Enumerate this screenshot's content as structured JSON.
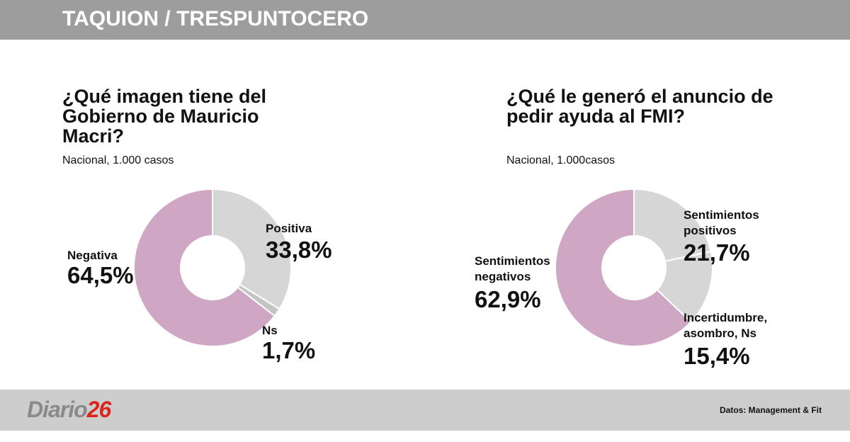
{
  "header": {
    "title": "TAQUION / TRESPUNTOCERO"
  },
  "footer": {
    "logo": [
      "Diario",
      "26"
    ],
    "source": "Datos: Management & Fit"
  },
  "chart_data": [
    {
      "type": "donut",
      "title": "¿Qué imagen tiene del Gobierno de Mauricio Macri?",
      "subtitle": "Nacional, 1.000 casos",
      "categories": [
        "Positiva",
        "Ns",
        "Negativa"
      ],
      "values": [
        33.8,
        1.7,
        64.5
      ],
      "value_labels": [
        "33,8%",
        "1,7%",
        "64,5%"
      ],
      "colors": [
        "#d6d6d6",
        "#c4c4c4",
        "#cfa6c4"
      ]
    },
    {
      "type": "donut",
      "title": "¿Qué le generó el anuncio de pedir ayuda al FMI?",
      "subtitle": "Nacional, 1.000casos",
      "categories": [
        "Sentimientos positivos",
        "Incertidumbre, asombro, Ns",
        "Sentimientos negativos"
      ],
      "values": [
        21.7,
        15.4,
        62.9
      ],
      "value_labels": [
        "21,7%",
        "15,4%",
        "62,9%"
      ],
      "colors": [
        "#d6d6d6",
        "#d6d6d6",
        "#cfa6c4"
      ]
    }
  ]
}
